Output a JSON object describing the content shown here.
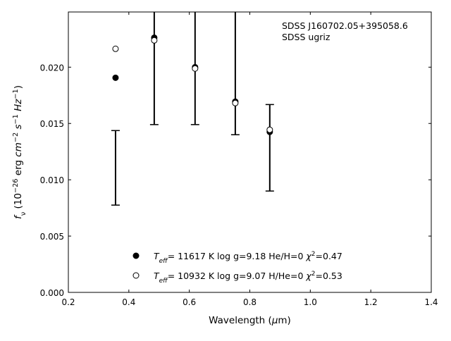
{
  "chart_data": {
    "type": "scatter",
    "annotations": [
      "SDSS J160702.05+395058.6",
      "SDSS ugriz"
    ],
    "x_label": [
      {
        "text": "Wavelength ("
      },
      {
        "text": "μ",
        "italic": true
      },
      {
        "text": "m)"
      }
    ],
    "y_label": [
      {
        "text": "f",
        "italic": true
      },
      {
        "text": "ν",
        "sub": true
      },
      {
        "text": " (10"
      },
      {
        "text": "−26",
        "sup": true
      },
      {
        "text": " erg "
      },
      {
        "text": "cm",
        "italic": true
      },
      {
        "text": "−2",
        "sup": true
      },
      {
        "text": " "
      },
      {
        "text": "s",
        "italic": true
      },
      {
        "text": "−1",
        "sup": true
      },
      {
        "text": " "
      },
      {
        "text": "Hz",
        "italic": true
      },
      {
        "text": "−1",
        "sup": true
      },
      {
        "text": ")"
      }
    ],
    "xlim": [
      0.2,
      1.4
    ],
    "ylim": [
      0,
      0.0249
    ],
    "xticks": [
      0.2,
      0.4,
      0.6,
      0.8,
      {
        "value": 1,
        "label": "1.0"
      },
      1.2,
      1.4
    ],
    "yticks": [
      {
        "value": 0,
        "label": "0.000"
      },
      {
        "value": 0.005,
        "label": "0.005"
      },
      {
        "value": 0.01,
        "label": "0.010"
      },
      {
        "value": 0.015,
        "label": "0.015"
      },
      {
        "value": 0.02,
        "label": "0.020"
      }
    ],
    "observed": {
      "x": [
        0.356,
        0.484,
        0.619,
        0.752,
        0.866
      ],
      "values": [
        0.01106,
        0.0225,
        0.02,
        0.02,
        0.01284
      ],
      "errors": [
        0.00331,
        0.0076,
        0.0051,
        0.006,
        0.00384
      ],
      "color": "#000000"
    },
    "series": [
      {
        "name": [
          {
            "text": "T",
            "italic": true
          },
          {
            "text": "eff",
            "sub": true,
            "italic": true
          },
          {
            "text": "= 11617 K  log g=9.18  He/H=0  "
          },
          {
            "text": "χ",
            "italic": true
          },
          {
            "text": "2",
            "sup": true
          },
          {
            "text": "=0.47"
          }
        ],
        "marker": "filled",
        "color": "#000000",
        "x": [
          0.356,
          0.484,
          0.619,
          0.752,
          0.866
        ],
        "values": [
          0.01906,
          0.02262,
          0.02,
          0.01694,
          0.01425
        ]
      },
      {
        "name": [
          {
            "text": "T",
            "italic": true
          },
          {
            "text": "eff",
            "sub": true,
            "italic": true
          },
          {
            "text": "= 10932 K  log g=9.07  H/He=0  "
          },
          {
            "text": "χ",
            "italic": true
          },
          {
            "text": "2",
            "sup": true
          },
          {
            "text": "=0.53"
          }
        ],
        "marker": "open",
        "color": "#000000",
        "x": [
          0.356,
          0.484,
          0.619,
          0.752,
          0.866
        ],
        "values": [
          0.02163,
          0.02238,
          0.01988,
          0.01681,
          0.01444
        ]
      }
    ]
  }
}
